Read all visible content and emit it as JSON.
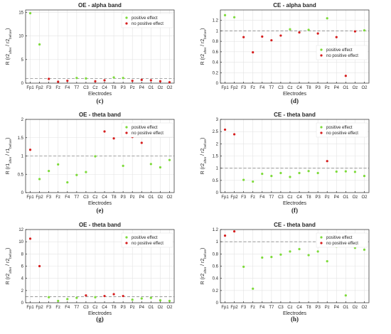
{
  "colors": {
    "positive": "#7ddb3a",
    "no_positive": "#d61e1e"
  },
  "chart_data": [
    {
      "type": "scatter",
      "title": "OE - alpha band",
      "caption": "(c)",
      "xlabel": "Electrodes",
      "ylabel": "R (r2after / r2before)",
      "categories": [
        "Fp1",
        "Fp2",
        "F3",
        "Fz",
        "F4",
        "T7",
        "C3",
        "Cz",
        "C4",
        "T8",
        "P3",
        "Pz",
        "P4",
        "O1",
        "Oz",
        "O2"
      ],
      "ylim": [
        0,
        15.5
      ],
      "yticks": [
        0,
        5,
        10,
        15
      ],
      "reference_line": 1,
      "legend": "top-right",
      "series": [
        {
          "name": "positive effect",
          "values": [
            14.8,
            8.2,
            null,
            null,
            null,
            1.1,
            1.0,
            null,
            null,
            1.2,
            1.1,
            null,
            null,
            null,
            null,
            null
          ]
        },
        {
          "name": "no positive effect",
          "values": [
            null,
            null,
            0.9,
            0.3,
            0.5,
            null,
            null,
            0.4,
            0.6,
            null,
            null,
            0.5,
            0.7,
            0.6,
            0.4,
            0.2
          ]
        }
      ]
    },
    {
      "type": "scatter",
      "title": "CE - alpha band",
      "caption": "(d)",
      "xlabel": "Electrodes",
      "ylabel": "R (r2after / r2before)",
      "categories": [
        "Fp1",
        "Fp2",
        "F3",
        "Fz",
        "F4",
        "T7",
        "C3",
        "Cz",
        "C4",
        "T8",
        "P3",
        "Pz",
        "P4",
        "O1",
        "Oz",
        "O2"
      ],
      "ylim": [
        0,
        1.4
      ],
      "yticks": [
        0,
        0.2,
        0.4,
        0.6,
        0.8,
        1,
        1.2
      ],
      "reference_line": 1,
      "legend": "right",
      "series": [
        {
          "name": "positive effect",
          "values": [
            1.3,
            1.26,
            null,
            null,
            null,
            null,
            null,
            1.03,
            null,
            1.02,
            null,
            1.24,
            null,
            null,
            null,
            1.01
          ]
        },
        {
          "name": "no positive effect",
          "values": [
            null,
            null,
            0.88,
            0.59,
            0.89,
            0.82,
            0.91,
            null,
            0.97,
            null,
            0.95,
            null,
            0.88,
            0.14,
            0.99,
            null
          ]
        }
      ]
    },
    {
      "type": "scatter",
      "title": "OE - theta band",
      "caption": "(e)",
      "xlabel": "Electrodes",
      "ylabel": "R (r1after / r1before)",
      "categories": [
        "Fp1",
        "Fp2",
        "F3",
        "Fz",
        "F4",
        "T7",
        "C3",
        "Cz",
        "C4",
        "T8",
        "P3",
        "Pz",
        "P4",
        "O1",
        "Oz",
        "O2"
      ],
      "ylim": [
        0,
        2
      ],
      "yticks": [
        0,
        0.5,
        1,
        1.5,
        2
      ],
      "reference_line": 1,
      "legend": "top-right",
      "series": [
        {
          "name": "positive effect",
          "values": [
            null,
            0.37,
            0.59,
            0.77,
            0.28,
            0.48,
            0.56,
            0.99,
            null,
            null,
            0.73,
            null,
            null,
            0.78,
            0.69,
            0.89
          ]
        },
        {
          "name": "no positive effect",
          "values": [
            1.17,
            null,
            null,
            null,
            null,
            null,
            null,
            null,
            1.67,
            1.48,
            null,
            1.52,
            1.36,
            null,
            null,
            null
          ]
        }
      ]
    },
    {
      "type": "scatter",
      "title": "CE - theta band",
      "caption": "(f)",
      "xlabel": "Electrodes",
      "ylabel": "R (r2after / r2before)",
      "categories": [
        "Fp1",
        "Fp2",
        "F3",
        "Fz",
        "F4",
        "T7",
        "C3",
        "Cz",
        "C4",
        "T8",
        "P3",
        "Pz",
        "P4",
        "O1",
        "Oz",
        "O2"
      ],
      "ylim": [
        0,
        3
      ],
      "yticks": [
        0,
        0.5,
        1,
        1.5,
        2,
        2.5,
        3
      ],
      "reference_line": 1,
      "legend": "top-right",
      "series": [
        {
          "name": "positive effect",
          "values": [
            null,
            null,
            0.52,
            0.45,
            0.77,
            0.68,
            0.8,
            0.64,
            0.8,
            0.88,
            0.8,
            null,
            0.86,
            0.87,
            0.85,
            0.68
          ]
        },
        {
          "name": "no positive effect",
          "values": [
            2.58,
            2.39,
            null,
            null,
            null,
            null,
            null,
            null,
            null,
            null,
            null,
            1.29,
            null,
            null,
            null,
            null
          ]
        }
      ]
    },
    {
      "type": "scatter",
      "title": "OE - theta band",
      "caption": "(g)",
      "xlabel": "Electrodes",
      "ylabel": "R (r2after / r2before)",
      "categories": [
        "Fp1",
        "Fp2",
        "F3",
        "Fz",
        "F4",
        "T7",
        "C3",
        "Cz",
        "C4",
        "T8",
        "P3",
        "Pz",
        "P4",
        "O1",
        "Oz",
        "O2"
      ],
      "ylim": [
        0,
        12
      ],
      "yticks": [
        0,
        2,
        4,
        6,
        8,
        10,
        12
      ],
      "reference_line": 1,
      "legend": "top-right",
      "series": [
        {
          "name": "positive effect",
          "values": [
            null,
            null,
            0.9,
            0.3,
            0.6,
            0.8,
            null,
            0.9,
            null,
            null,
            null,
            0.5,
            0.7,
            0.8,
            0.4,
            0.3
          ]
        },
        {
          "name": "no positive effect",
          "values": [
            10.5,
            6.0,
            null,
            null,
            null,
            null,
            1.2,
            null,
            1.1,
            1.4,
            1.1,
            null,
            null,
            null,
            null,
            null
          ]
        }
      ]
    },
    {
      "type": "scatter",
      "title": "CE - theta band",
      "caption": "(h)",
      "xlabel": "Electrodes",
      "ylabel": "R (r2after / r2before)",
      "categories": [
        "Fp1",
        "Fp2",
        "F3",
        "Fz",
        "F4",
        "T7",
        "C3",
        "Cz",
        "C4",
        "T8",
        "P3",
        "Pz",
        "P4",
        "O1",
        "Oz",
        "O2"
      ],
      "ylim": [
        0,
        1.2
      ],
      "yticks": [
        0,
        0.2,
        0.4,
        0.6,
        0.8,
        1,
        1.2
      ],
      "reference_line": 1,
      "legend": "top-right",
      "series": [
        {
          "name": "positive effect",
          "values": [
            null,
            null,
            0.59,
            0.23,
            0.74,
            0.75,
            0.79,
            0.84,
            0.88,
            0.78,
            0.84,
            0.68,
            0.92,
            0.12,
            0.9,
            0.87
          ]
        },
        {
          "name": "no positive effect",
          "values": [
            1.1,
            1.17,
            null,
            null,
            null,
            null,
            null,
            null,
            null,
            null,
            null,
            null,
            null,
            null,
            null,
            null
          ]
        }
      ]
    }
  ]
}
